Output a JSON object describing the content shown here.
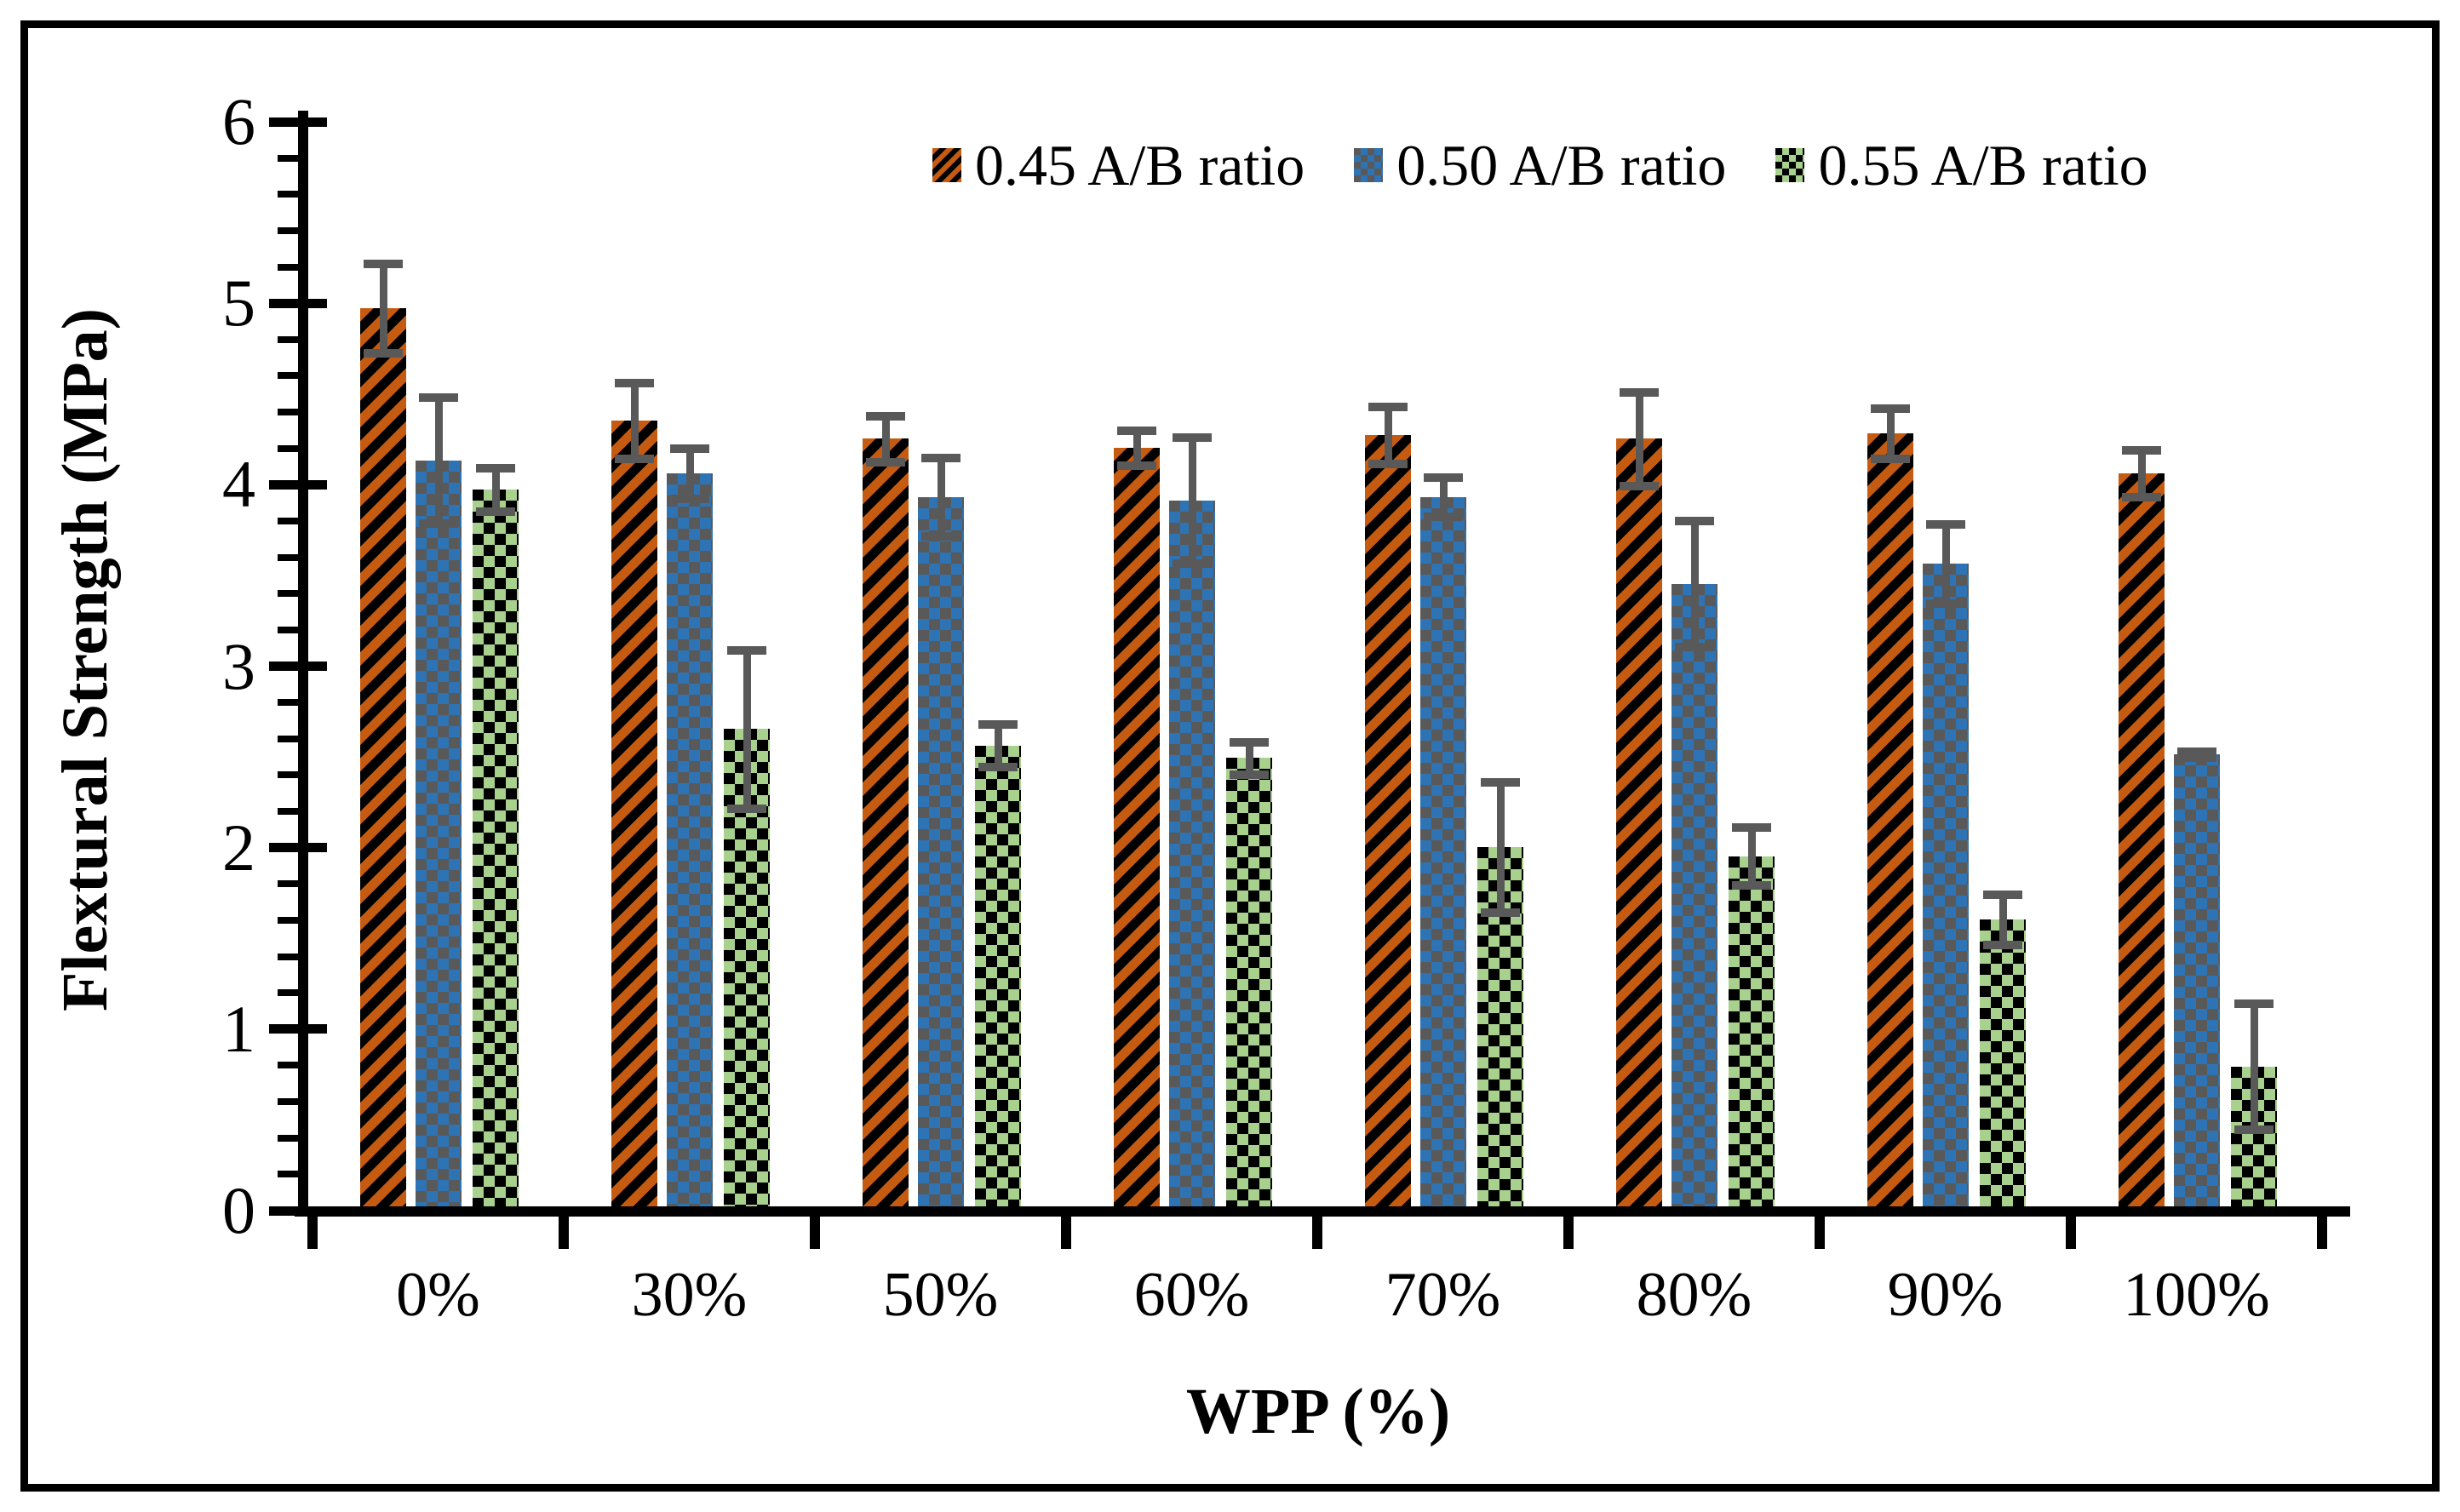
{
  "chart_data": {
    "type": "bar",
    "title": "",
    "xlabel": "WPP (%)",
    "ylabel": "Flextural Strength (MPa)",
    "ylim": [
      0,
      6
    ],
    "y_ticks": [
      0,
      1,
      2,
      3,
      4,
      5,
      6
    ],
    "y_minor_tick_step": 0.2,
    "grid": "off",
    "legend_position": "top-center",
    "error_bar_color": "#595959",
    "categories": [
      "0%",
      "30%",
      "50%",
      "60%",
      "70%",
      "80%",
      "90%",
      "100%"
    ],
    "series": [
      {
        "name": "0.45 A/B ratio",
        "color": "#C55A11",
        "pattern": "black-diagonal-stripes",
        "values": [
          4.95,
          4.33,
          4.23,
          4.18,
          4.25,
          4.23,
          4.26,
          4.04
        ],
        "errors": [
          0.25,
          0.21,
          0.13,
          0.1,
          0.16,
          0.26,
          0.14,
          0.13
        ]
      },
      {
        "name": "0.50 A/B ratio",
        "color": "#2E74B5",
        "pattern": "gray-checkerboard",
        "values": [
          4.11,
          4.04,
          3.91,
          3.89,
          3.91,
          3.43,
          3.54,
          2.49
        ],
        "errors": [
          0.35,
          0.14,
          0.22,
          0.35,
          0.11,
          0.35,
          0.22,
          0.02
        ]
      },
      {
        "name": "0.55 A/B ratio",
        "color": "#A9D18E",
        "pattern": "black-checkerboard",
        "values": [
          3.95,
          2.63,
          2.54,
          2.47,
          1.98,
          1.93,
          1.58,
          0.77
        ],
        "errors": [
          0.12,
          0.44,
          0.12,
          0.09,
          0.36,
          0.16,
          0.14,
          0.35
        ]
      }
    ]
  }
}
